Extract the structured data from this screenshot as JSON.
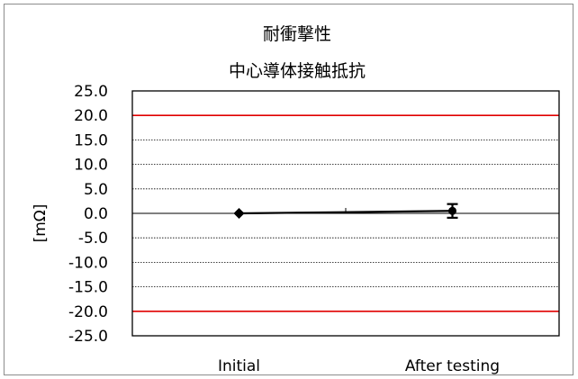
{
  "chart_data": {
    "type": "line",
    "title": "耐衝撃性",
    "subtitle": "中心導体接触抵抗",
    "xlabel": "",
    "ylabel": "[mΩ]",
    "ylim": [
      -25,
      25
    ],
    "ytick_step": 5,
    "y_tick_labels": [
      "25.0",
      "20.0",
      "15.0",
      "10.0",
      "5.0",
      "0.0",
      "-5.0",
      "-10.0",
      "-15.0",
      "-20.0",
      "-25.0"
    ],
    "categories": [
      "Initial",
      "After testing"
    ],
    "series": [
      {
        "values": [
          0.0,
          0.5
        ],
        "error_low": [
          0.0,
          1.4
        ],
        "error_high": [
          0.0,
          1.4
        ],
        "markers": [
          "diamond",
          "circle"
        ],
        "color": "#000000"
      }
    ],
    "limit_lines": [
      {
        "value": 20,
        "color": "#e00000"
      },
      {
        "value": -20,
        "color": "#e00000"
      }
    ],
    "grid": true,
    "legend": "none"
  }
}
